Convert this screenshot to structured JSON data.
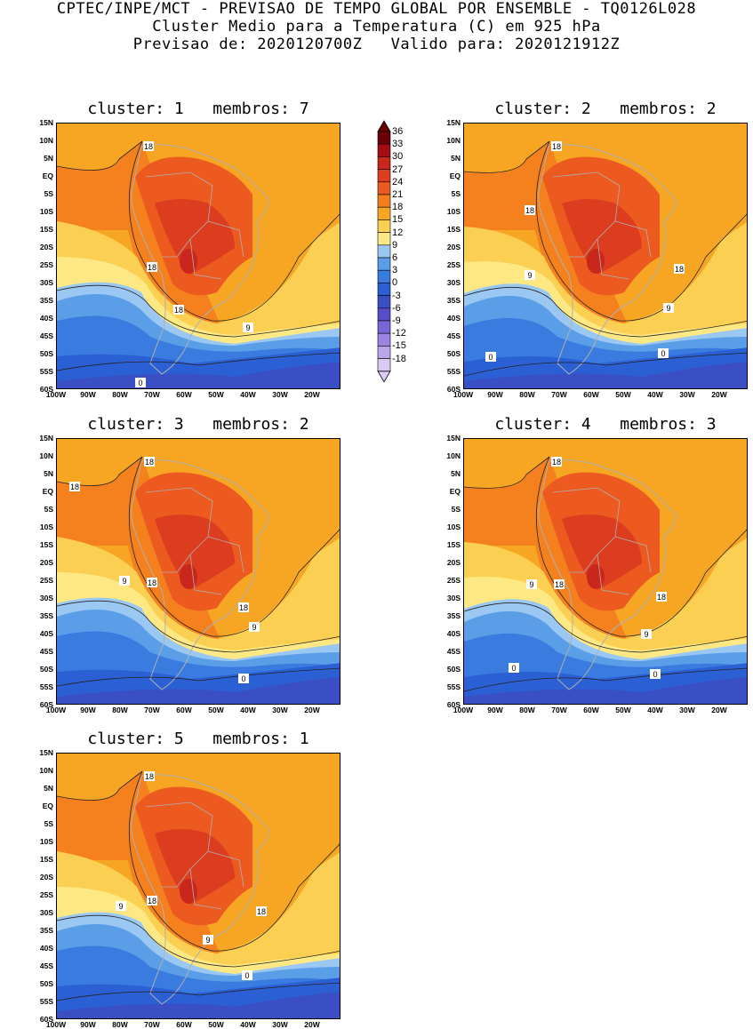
{
  "header": {
    "line1": "CPTEC/INPE/MCT - PREVISAO DE TEMPO GLOBAL POR ENSEMBLE - TQ0126L028",
    "line2": "Cluster Medio para a Temperatura (C) em 925 hPa",
    "line3": "Previsao de: 2020120700Z   Valido para: 2020121912Z"
  },
  "lat_ticks": [
    "15N",
    "10N",
    "5N",
    "EQ",
    "5S",
    "10S",
    "15S",
    "20S",
    "25S",
    "30S",
    "35S",
    "40S",
    "45S",
    "50S",
    "55S",
    "60S"
  ],
  "lon_ticks": [
    "100W",
    "90W",
    "80W",
    "70W",
    "60W",
    "50W",
    "40W",
    "30W",
    "20W"
  ],
  "colorbar": {
    "levels": [
      "36",
      "33",
      "30",
      "27",
      "24",
      "21",
      "18",
      "15",
      "12",
      "9",
      "6",
      "3",
      "0",
      "-3",
      "-6",
      "-9",
      "-12",
      "-15",
      "-18"
    ],
    "colors": [
      "#6b0008",
      "#a50d12",
      "#c9261c",
      "#dd3d1f",
      "#ec5a1f",
      "#f47d1e",
      "#f6a623",
      "#fbcf52",
      "#fde883",
      "#9bc8f2",
      "#5b9ee8",
      "#3a7be0",
      "#2b60d4",
      "#3a4fc4",
      "#5a4cc8",
      "#7a64d6",
      "#9b84e2",
      "#bba6ec",
      "#dacbf5"
    ]
  },
  "clusters": [
    {
      "title": "cluster: 1   membros: 7",
      "labels": [
        "18",
        "18",
        "18",
        "9",
        "0"
      ]
    },
    {
      "title": "cluster: 2   membros: 2",
      "labels": [
        "18",
        "18",
        "18",
        "9",
        "9",
        "0",
        "0"
      ]
    },
    {
      "title": "cluster: 3   membros: 2",
      "labels": [
        "18",
        "18",
        "18",
        "9",
        "18",
        "9",
        "0"
      ]
    },
    {
      "title": "cluster: 4   membros: 3",
      "labels": [
        "18",
        "9",
        "18",
        "18",
        "9",
        "0",
        "0"
      ]
    },
    {
      "title": "cluster: 5   membros: 1",
      "labels": [
        "18",
        "9",
        "18",
        "18",
        "9",
        "0"
      ]
    }
  ]
}
